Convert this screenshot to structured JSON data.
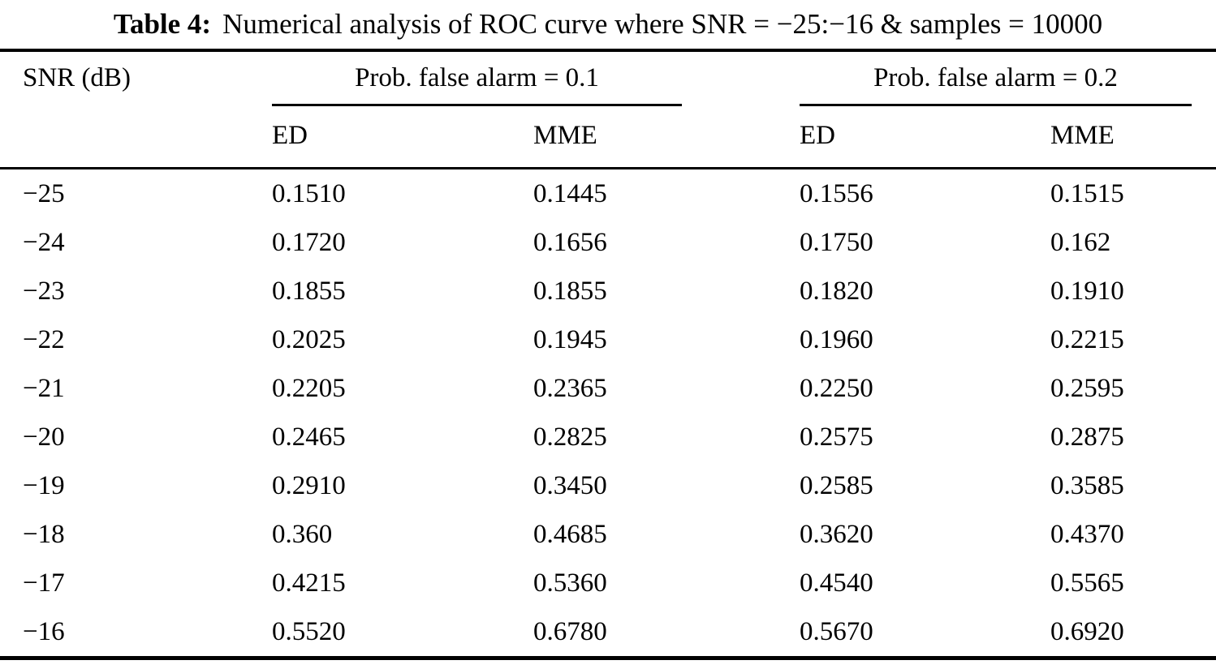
{
  "title": {
    "label": "Table 4:",
    "text": "Numerical analysis of ROC curve where SNR = −25:−16 & samples = 10000"
  },
  "table": {
    "snr_header": "SNR (dB)",
    "groups": [
      {
        "label": "Prob. false alarm = 0.1",
        "columns": [
          "ED",
          "MME"
        ]
      },
      {
        "label": "Prob. false alarm = 0.2",
        "columns": [
          "ED",
          "MME"
        ]
      }
    ],
    "rows": [
      {
        "snr": "−25",
        "values": [
          "0.1510",
          "0.1445",
          "0.1556",
          "0.1515"
        ]
      },
      {
        "snr": "−24",
        "values": [
          "0.1720",
          "0.1656",
          "0.1750",
          "0.162"
        ]
      },
      {
        "snr": "−23",
        "values": [
          "0.1855",
          "0.1855",
          "0.1820",
          "0.1910"
        ]
      },
      {
        "snr": "−22",
        "values": [
          "0.2025",
          "0.1945",
          "0.1960",
          "0.2215"
        ]
      },
      {
        "snr": "−21",
        "values": [
          "0.2205",
          "0.2365",
          "0.2250",
          "0.2595"
        ]
      },
      {
        "snr": "−20",
        "values": [
          "0.2465",
          "0.2825",
          "0.2575",
          "0.2875"
        ]
      },
      {
        "snr": "−19",
        "values": [
          "0.2910",
          "0.3450",
          "0.2585",
          "0.3585"
        ]
      },
      {
        "snr": "−18",
        "values": [
          "0.360",
          "0.4685",
          "0.3620",
          "0.4370"
        ]
      },
      {
        "snr": "−17",
        "values": [
          "0.4215",
          "0.5360",
          "0.4540",
          "0.5565"
        ]
      },
      {
        "snr": "−16",
        "values": [
          "0.5520",
          "0.6780",
          "0.5670",
          "0.6920"
        ]
      }
    ],
    "text_color": "#000000",
    "background_color": "#ffffff"
  },
  "chart_data": {
    "type": "table",
    "title": "Table 4: Numerical analysis of ROC curve where SNR = −25:−16 & samples = 10000",
    "column_headers": [
      "SNR (dB)",
      "Prob. false alarm = 0.1 / ED",
      "Prob. false alarm = 0.1 / MME",
      "Prob. false alarm = 0.2 / ED",
      "Prob. false alarm = 0.2 / MME"
    ],
    "rows": [
      [
        -25,
        0.151,
        0.1445,
        0.1556,
        0.1515
      ],
      [
        -24,
        0.172,
        0.1656,
        0.175,
        0.162
      ],
      [
        -23,
        0.1855,
        0.1855,
        0.182,
        0.191
      ],
      [
        -22,
        0.2025,
        0.1945,
        0.196,
        0.2215
      ],
      [
        -21,
        0.2205,
        0.2365,
        0.225,
        0.2595
      ],
      [
        -20,
        0.2465,
        0.2825,
        0.2575,
        0.2875
      ],
      [
        -19,
        0.291,
        0.345,
        0.2585,
        0.3585
      ],
      [
        -18,
        0.36,
        0.4685,
        0.362,
        0.437
      ],
      [
        -17,
        0.4215,
        0.536,
        0.454,
        0.5565
      ],
      [
        -16,
        0.552,
        0.678,
        0.567,
        0.692
      ]
    ]
  }
}
